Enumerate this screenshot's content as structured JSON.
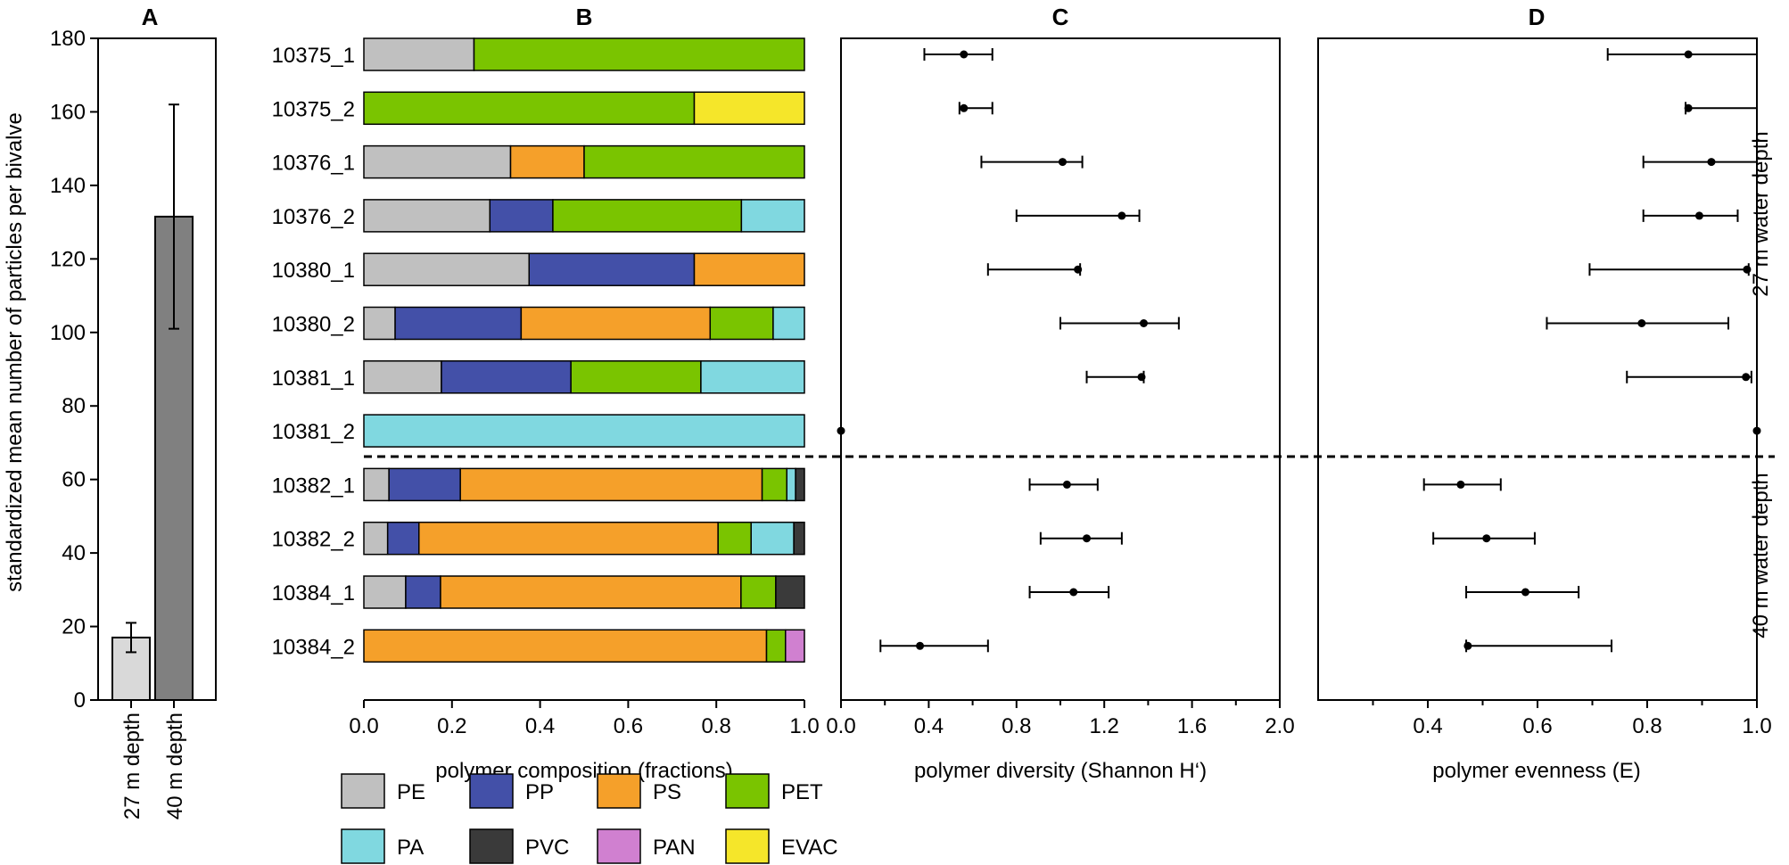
{
  "chart_data": [
    {
      "panel": "A",
      "type": "bar",
      "title": "A",
      "ylabel": "standardized mean number of particles per bivalve",
      "xlabel": "",
      "ylim": [
        0,
        180
      ],
      "yticks": [
        0,
        20,
        40,
        60,
        80,
        100,
        120,
        140,
        160,
        180
      ],
      "categories": [
        "27 m depth",
        "40 m depth"
      ],
      "values": [
        17,
        131.5
      ],
      "error_low": [
        13,
        101
      ],
      "error_high": [
        21,
        162
      ],
      "colors": [
        "#d9d9d9",
        "#808080"
      ]
    },
    {
      "panel": "B",
      "type": "bar",
      "orientation": "horizontal-stacked",
      "title": "B",
      "xlabel": "polymer composition (fractions)",
      "xlim": [
        0,
        1
      ],
      "xticks": [
        "0.0",
        "0.2",
        "0.4",
        "0.6",
        "0.8",
        "1.0"
      ],
      "categories": [
        "10375_1",
        "10375_2",
        "10376_1",
        "10376_2",
        "10380_1",
        "10380_2",
        "10381_1",
        "10381_2",
        "10382_1",
        "10382_2",
        "10384_1",
        "10384_2"
      ],
      "series": [
        {
          "name": "PE",
          "color": "#c0c0c0",
          "values": [
            0.25,
            0,
            0.333,
            0.286,
            0.375,
            0.071,
            0.176,
            0,
            0.057,
            0.054,
            0.095,
            0
          ]
        },
        {
          "name": "PP",
          "color": "#4350a8",
          "values": [
            0,
            0,
            0,
            0.143,
            0.375,
            0.286,
            0.294,
            0,
            0.162,
            0.071,
            0.079,
            0
          ]
        },
        {
          "name": "PS",
          "color": "#f5a02a",
          "values": [
            0,
            0,
            0.167,
            0,
            0.25,
            0.429,
            0,
            0,
            0.685,
            0.679,
            0.682,
            0.914
          ]
        },
        {
          "name": "PET",
          "color": "#7ac400",
          "values": [
            0.75,
            0.75,
            0.5,
            0.428,
            0,
            0.143,
            0.295,
            0,
            0.056,
            0.075,
            0.079,
            0.043
          ]
        },
        {
          "name": "PA",
          "color": "#80d8e0",
          "values": [
            0,
            0,
            0,
            0.143,
            0,
            0.071,
            0.235,
            1,
            0.02,
            0.097,
            0,
            0
          ]
        },
        {
          "name": "PVC",
          "color": "#3a3a3a",
          "values": [
            0,
            0,
            0,
            0,
            0,
            0,
            0,
            0,
            0.02,
            0.024,
            0.065,
            0
          ]
        },
        {
          "name": "PAN",
          "color": "#d080d0",
          "values": [
            0,
            0,
            0,
            0,
            0,
            0,
            0,
            0,
            0,
            0,
            0,
            0.043
          ]
        },
        {
          "name": "EVAC",
          "color": "#f5e62a",
          "values": [
            0,
            0.25,
            0,
            0,
            0,
            0,
            0,
            0,
            0,
            0,
            0,
            0
          ]
        }
      ]
    },
    {
      "panel": "C",
      "type": "scatter",
      "title": "C",
      "xlabel": "polymer diversity (Shannon H‘)",
      "xlim": [
        0,
        2
      ],
      "xticks": [
        "0.0",
        "0.4",
        "0.8",
        "1.2",
        "1.6",
        "2.0"
      ],
      "categories": [
        "10375_1",
        "10375_2",
        "10376_1",
        "10376_2",
        "10380_1",
        "10380_2",
        "10381_1",
        "10381_2",
        "10382_1",
        "10382_2",
        "10384_1",
        "10384_2"
      ],
      "values": [
        0.56,
        0.56,
        1.01,
        1.28,
        1.08,
        1.38,
        1.37,
        0.0,
        1.03,
        1.12,
        1.06,
        0.36
      ],
      "error_low": [
        0.38,
        0.54,
        0.64,
        0.8,
        0.67,
        1.0,
        1.12,
        0.0,
        0.86,
        0.91,
        0.86,
        0.18
      ],
      "error_high": [
        0.69,
        0.69,
        1.1,
        1.36,
        1.09,
        1.54,
        1.38,
        0.0,
        1.17,
        1.28,
        1.22,
        0.67
      ]
    },
    {
      "panel": "D",
      "type": "scatter",
      "title": "D",
      "xlabel": "polymer evenness (E)",
      "xlim": [
        0.2,
        1.0
      ],
      "xticks": [
        "0.4",
        "0.6",
        "0.8",
        "1.0"
      ],
      "categories": [
        "10375_1",
        "10375_2",
        "10376_1",
        "10376_2",
        "10380_1",
        "10380_2",
        "10381_1",
        "10381_2",
        "10382_1",
        "10382_2",
        "10384_1",
        "10384_2"
      ],
      "values": [
        0.875,
        0.875,
        0.917,
        0.895,
        0.982,
        0.79,
        0.98,
        1.0,
        0.46,
        0.507,
        0.578,
        0.473
      ],
      "error_low": [
        0.728,
        0.87,
        0.793,
        0.793,
        0.695,
        0.617,
        0.763,
        1.0,
        0.393,
        0.41,
        0.47,
        0.47
      ],
      "error_high": [
        1.0,
        1.0,
        1.0,
        0.965,
        0.985,
        0.948,
        0.99,
        1.0,
        0.533,
        0.595,
        0.675,
        0.735
      ]
    }
  ],
  "depth_labels": [
    "27 m water depth",
    "40 m water depth"
  ]
}
